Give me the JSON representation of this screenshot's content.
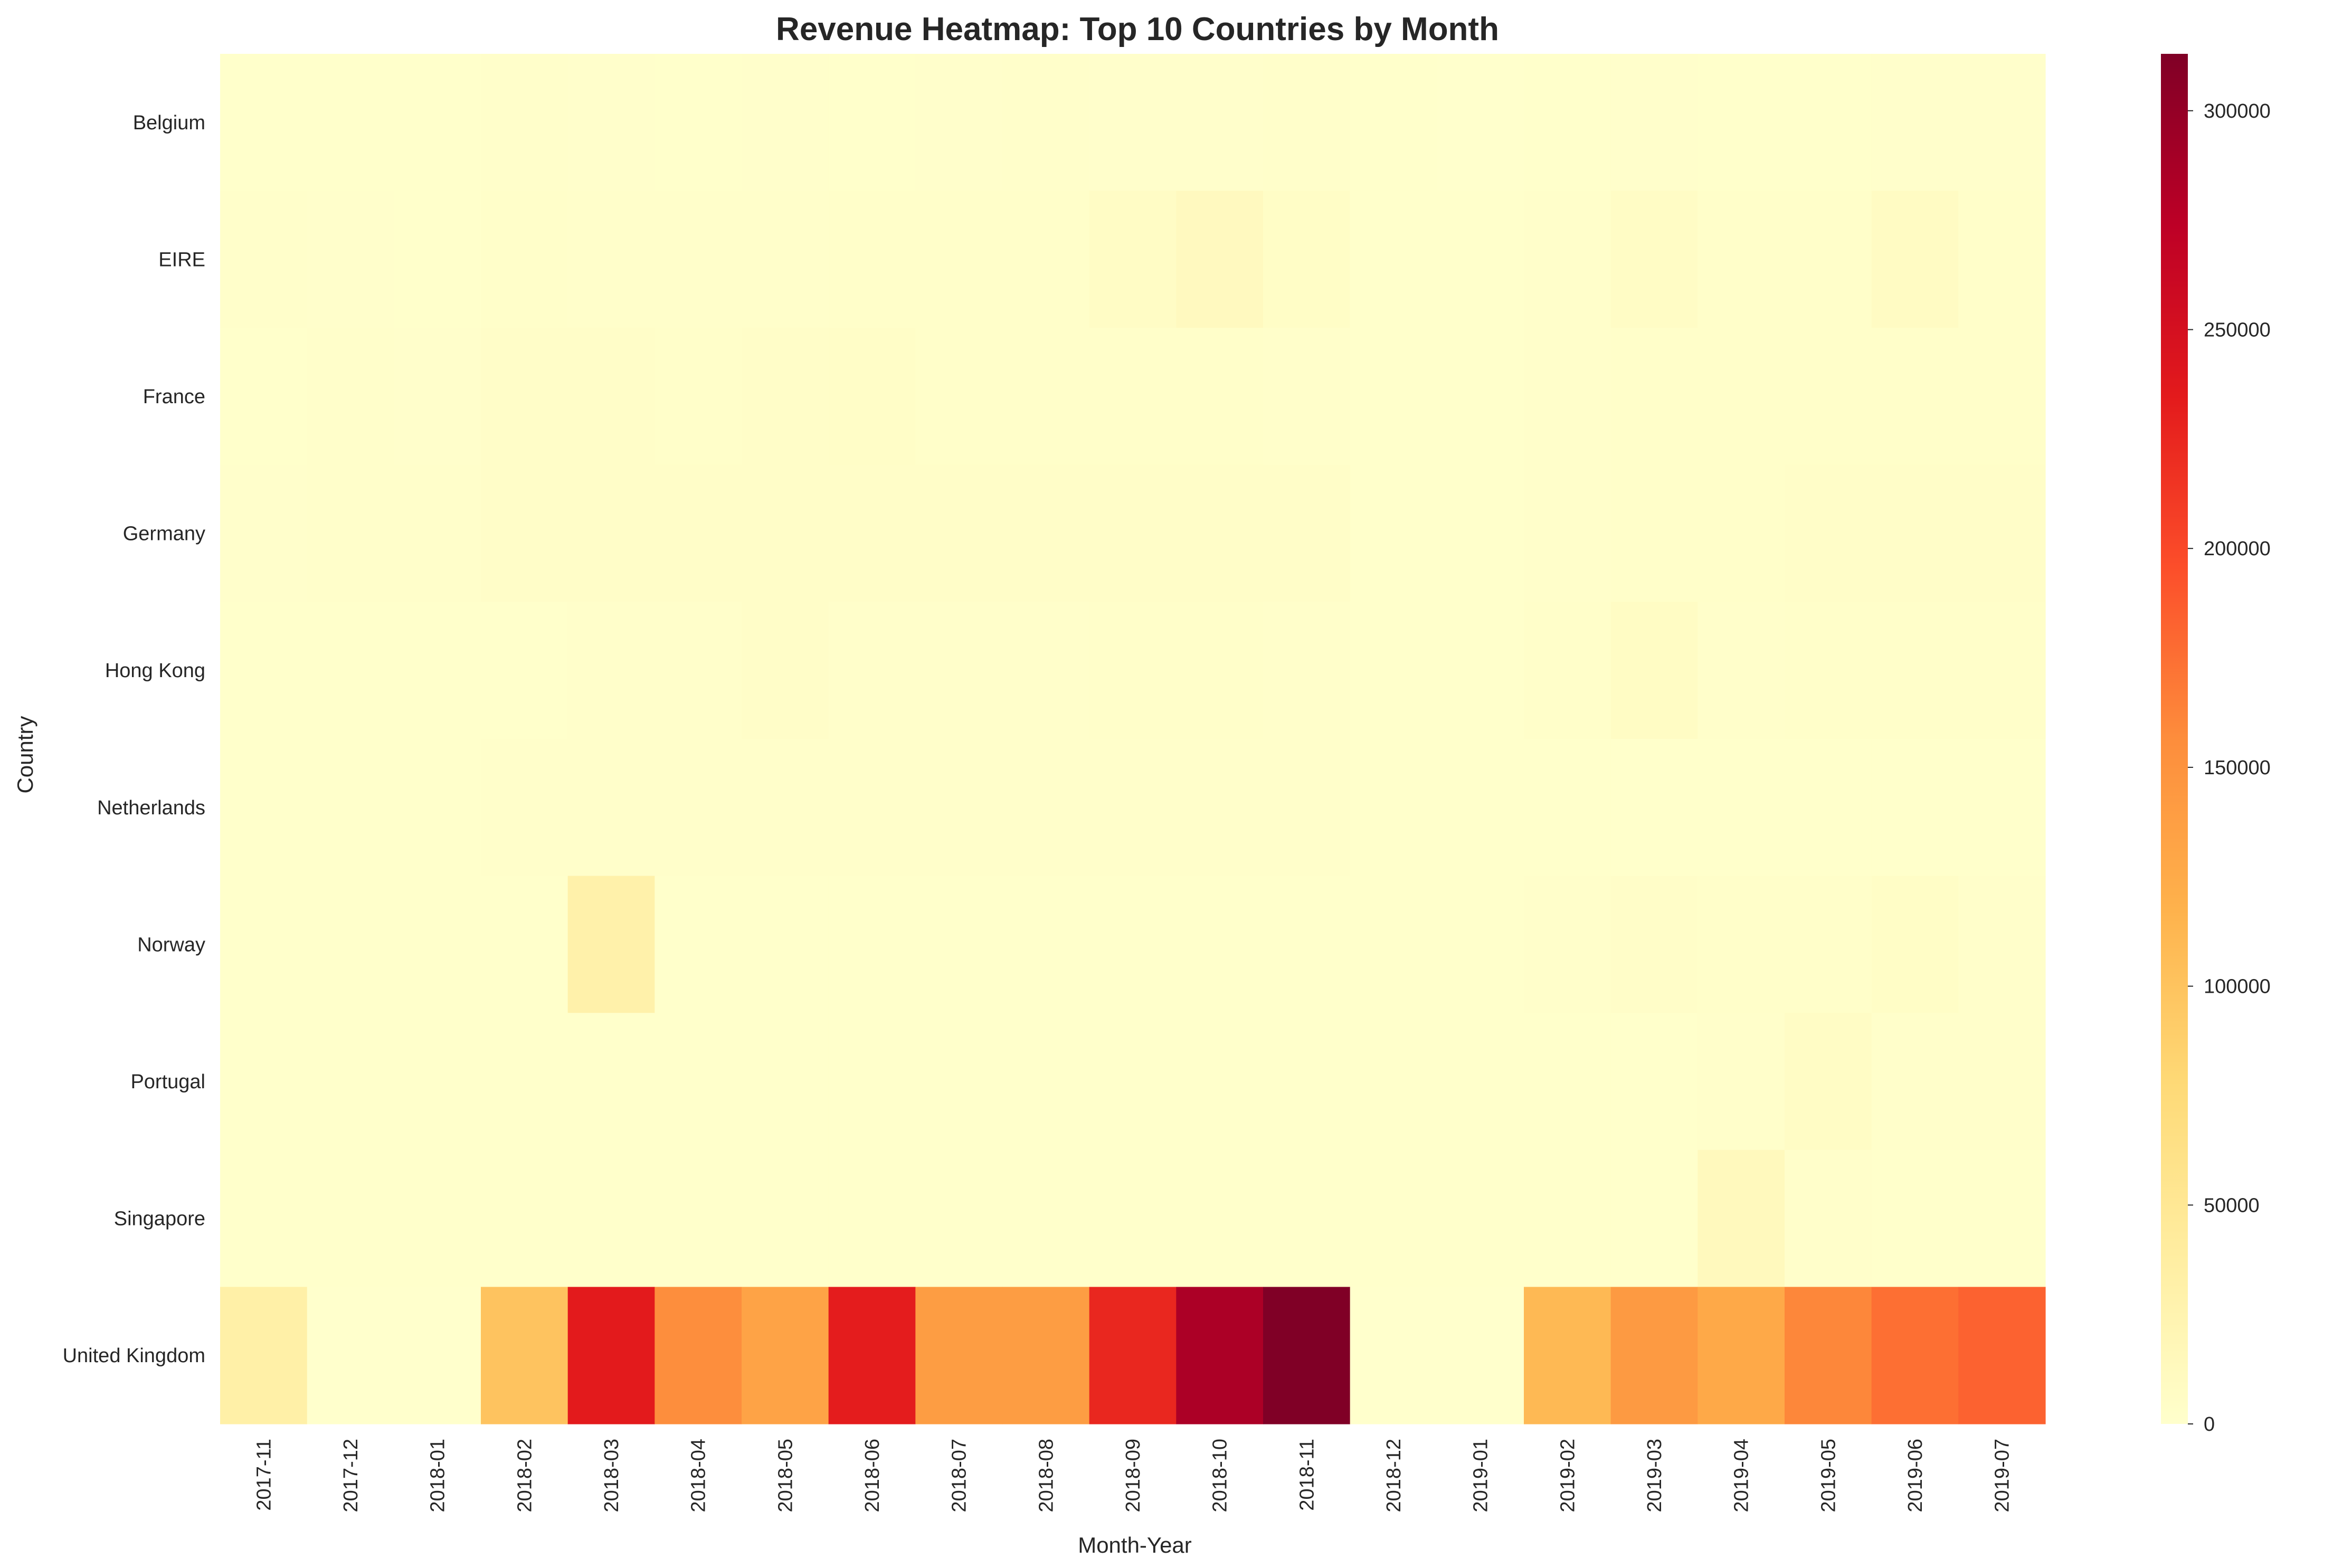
{
  "chart_data": {
    "type": "heatmap",
    "title": "Revenue Heatmap: Top 10 Countries by Month",
    "xlabel": "Month-Year",
    "ylabel": "Country",
    "x_categories": [
      "2017-11",
      "2017-12",
      "2018-01",
      "2018-02",
      "2018-03",
      "2018-04",
      "2018-05",
      "2018-06",
      "2018-07",
      "2018-08",
      "2018-09",
      "2018-10",
      "2018-11",
      "2018-12",
      "2019-01",
      "2019-02",
      "2019-03",
      "2019-04",
      "2019-05",
      "2019-06",
      "2019-07"
    ],
    "y_categories": [
      "Belgium",
      "EIRE",
      "France",
      "Germany",
      "Hong Kong",
      "Netherlands",
      "Norway",
      "Portugal",
      "Singapore",
      "United Kingdom"
    ],
    "values": [
      [
        500,
        700,
        500,
        1500,
        1200,
        1000,
        1200,
        1000,
        1200,
        1500,
        1200,
        1300,
        1500,
        500,
        400,
        1000,
        1200,
        1000,
        900,
        1200,
        1200
      ],
      [
        1500,
        1200,
        1000,
        2500,
        1800,
        2000,
        2200,
        2500,
        3000,
        2500,
        6000,
        12000,
        5000,
        1000,
        800,
        2000,
        6000,
        2500,
        3000,
        8000,
        2500
      ],
      [
        1000,
        1500,
        1200,
        3500,
        3500,
        3000,
        3500,
        4500,
        2500,
        2500,
        2500,
        2500,
        2000,
        800,
        1000,
        2000,
        2500,
        2500,
        2500,
        2500,
        2500
      ],
      [
        1200,
        1500,
        1500,
        4000,
        4000,
        4000,
        3500,
        3500,
        3500,
        3500,
        3500,
        3500,
        3500,
        1000,
        800,
        2000,
        2500,
        3000,
        3500,
        3500,
        3500
      ],
      [
        800,
        700,
        600,
        1000,
        1500,
        2000,
        3500,
        2000,
        1500,
        1500,
        3000,
        2500,
        2000,
        500,
        500,
        3000,
        7000,
        2000,
        2500,
        2500,
        2500
      ],
      [
        1000,
        1000,
        1000,
        2000,
        2000,
        2000,
        2000,
        2000,
        2000,
        2000,
        2000,
        2000,
        2000,
        1000,
        1000,
        1000,
        1000,
        1000,
        1000,
        1000,
        1000
      ],
      [
        500,
        500,
        500,
        1000,
        30000,
        1000,
        1000,
        1000,
        1000,
        1000,
        1000,
        1000,
        1000,
        500,
        500,
        2000,
        4000,
        3000,
        3000,
        5000,
        2000
      ],
      [
        500,
        500,
        500,
        1000,
        1000,
        1000,
        1000,
        1000,
        1000,
        1000,
        1000,
        1000,
        1000,
        500,
        500,
        1000,
        1000,
        2000,
        6000,
        2000,
        2000
      ],
      [
        500,
        500,
        500,
        1000,
        1000,
        1000,
        1000,
        1000,
        1000,
        1000,
        1000,
        1000,
        1000,
        500,
        500,
        1000,
        1000,
        13000,
        2000,
        1000,
        1000
      ],
      [
        33000,
        0,
        0,
        100000,
        235000,
        155000,
        133000,
        233000,
        140000,
        140000,
        225000,
        285000,
        313000,
        0,
        0,
        110000,
        143000,
        127000,
        160000,
        175000,
        183000
      ]
    ],
    "zlim": [
      0,
      313000
    ],
    "colorbar_ticks": [
      0,
      50000,
      100000,
      150000,
      200000,
      250000,
      300000
    ],
    "colormap": "YlOrRd",
    "colormap_stops": [
      "#ffffcc",
      "#ffeda0",
      "#fed976",
      "#feb24c",
      "#fd8d3c",
      "#fc4e2a",
      "#e31a1c",
      "#bd0026",
      "#800026"
    ]
  }
}
